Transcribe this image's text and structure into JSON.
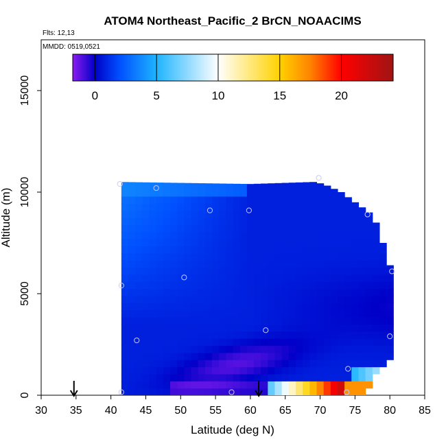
{
  "chart_data": {
    "type": "heatmap",
    "title": "ATOM4 Northeast_Pacific_2 BrCN_NOAACIMS",
    "flights_note": "Flts: 12,13",
    "date_note": "MMDD: 0519,0521",
    "xlabel": "Latitude (deg N)",
    "ylabel": "Altitude (m)",
    "xlim": [
      30,
      85
    ],
    "ylim": [
      0,
      17500
    ],
    "x_ticks": [
      "30",
      "35",
      "40",
      "45",
      "50",
      "55",
      "60",
      "65",
      "70",
      "75",
      "80",
      "85"
    ],
    "y_ticks": [
      "0",
      "5000",
      "10000",
      "15000"
    ],
    "grid": false,
    "colorbar": {
      "location": "top",
      "range": [
        -1.8,
        24.2
      ],
      "ticks": [
        "0",
        "5",
        "10",
        "15",
        "20"
      ],
      "tick_values": [
        0,
        5,
        10,
        15,
        20
      ],
      "colors": [
        "#8b1cf0",
        "#0000c8",
        "#0050ff",
        "#1eb4ff",
        "#ffffff",
        "#ffd200",
        "#ff8200",
        "#ff0000",
        "#a01414"
      ],
      "color_positions": [
        -1.8,
        0,
        2,
        5,
        10,
        15,
        17.5,
        20,
        24.2
      ]
    },
    "arrows_latitude": [
      34.7,
      61.2
    ],
    "field_extent": {
      "lat_min": 41.5,
      "lat_max": 80.5,
      "alt_min": 0,
      "alt_max": 10500,
      "top_edge": [
        [
          41.5,
          10500
        ],
        [
          60,
          10400
        ],
        [
          69,
          10500
        ],
        [
          70.5,
          10400
        ],
        [
          73,
          10000
        ],
        [
          75,
          9500
        ],
        [
          77,
          9000
        ],
        [
          78,
          8500
        ],
        [
          79,
          7500
        ],
        [
          80,
          6400
        ],
        [
          80.5,
          5200
        ],
        [
          80.5,
          2000
        ],
        [
          79,
          1400
        ],
        [
          78,
          900
        ],
        [
          77,
          500
        ],
        [
          76,
          150
        ],
        [
          73.5,
          0
        ]
      ]
    },
    "observation_points": [
      {
        "lat": 41.3,
        "alt": 10400
      },
      {
        "lat": 46.5,
        "alt": 10200
      },
      {
        "lat": 54.2,
        "alt": 9100
      },
      {
        "lat": 59.8,
        "alt": 9100
      },
      {
        "lat": 69.8,
        "alt": 10700
      },
      {
        "lat": 76.8,
        "alt": 8900
      },
      {
        "lat": 80.3,
        "alt": 6100
      },
      {
        "lat": 41.5,
        "alt": 5400
      },
      {
        "lat": 50.5,
        "alt": 5800
      },
      {
        "lat": 62.2,
        "alt": 3200
      },
      {
        "lat": 43.7,
        "alt": 2700
      },
      {
        "lat": 80.0,
        "alt": 2900
      },
      {
        "lat": 74.0,
        "alt": 1300
      },
      {
        "lat": 41.5,
        "alt": 150
      },
      {
        "lat": 57.3,
        "alt": 150
      },
      {
        "lat": 73.8,
        "alt": 150
      }
    ]
  }
}
